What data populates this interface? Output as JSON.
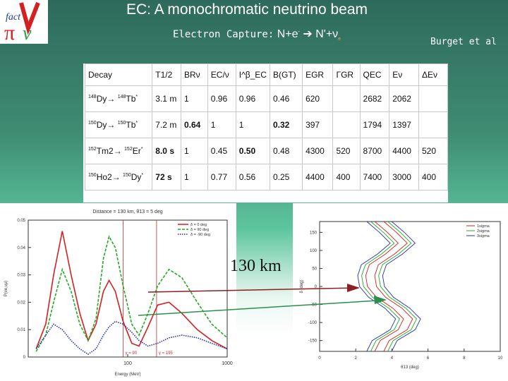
{
  "slide": {
    "title": "EC: A monochromatic neutrino beam",
    "subtitle_label": "Electron Capture:",
    "reaction_lhs": "N+e",
    "reaction_minus": "-",
    "reaction_arrow": "➔",
    "reaction_rhs": "N'+ν",
    "reaction_sub": "e",
    "credit": "Burget et al",
    "distance_label": "130 km"
  },
  "table": {
    "headers": [
      "Decay",
      "T1/2",
      "BRν",
      "EC/ν",
      "I^β_EC",
      "B(GT)",
      "EGR",
      "ΓGR",
      "QEC",
      "Eν",
      "ΔEν"
    ],
    "rows": [
      {
        "decay_a": "148",
        "el_a": "Dy",
        "decay_b": "148",
        "el_b": "Tb",
        "star": "*",
        "t": "3.1 m",
        "br": "1",
        "ec": "0.96",
        "ib": "0.96",
        "bgt": "0.46",
        "egr": "620",
        "ggr": "",
        "q": "2682",
        "e": "2062",
        "de": ""
      },
      {
        "decay_a": "150",
        "el_a": "Dy",
        "decay_b": "150",
        "el_b": "Tb",
        "star": "*",
        "t": "7.2 m",
        "br": "0.64",
        "ec": "1",
        "ib": "1",
        "bgt": "0.32",
        "egr": "397",
        "ggr": "",
        "q": "1794",
        "e": "1397",
        "de": ""
      },
      {
        "decay_a": "152",
        "el_a": "Tm2",
        "decay_b": "152",
        "el_b": "Er",
        "star": "*",
        "t": "8.0 s",
        "br": "1",
        "ec": "0.45",
        "ib": "0.50",
        "bgt": "0.48",
        "egr": "4300",
        "ggr": "520",
        "q": "8700",
        "e": "4400",
        "de": "520"
      },
      {
        "decay_a": "150",
        "el_a": "Ho2",
        "decay_b": "150",
        "el_b": "Dy",
        "star": "*",
        "t": "72 s",
        "br": "1",
        "ec": "0.77",
        "ib": "0.56",
        "bgt": "0.25",
        "egr": "4400",
        "ggr": "400",
        "q": "7400",
        "e": "3000",
        "de": "400"
      }
    ]
  },
  "chart_data": [
    {
      "type": "line",
      "title": "Distance = 130 km, θ13 = 5 deg",
      "xlabel": "Energy (MeV)",
      "ylabel": "P(νe,νμ)",
      "xscale": "log",
      "xlim": [
        10,
        1000
      ],
      "ylim": [
        0,
        0.05
      ],
      "yticks": [
        0,
        0.01,
        0.02,
        0.03,
        0.04,
        0.05
      ],
      "xticks": [
        100,
        1000
      ],
      "legend": "top-right",
      "vlines": [
        {
          "x": 90,
          "label": "γ = 90"
        },
        {
          "x": 195,
          "label": "γ = 195"
        }
      ],
      "series": [
        {
          "name": "δ = 0 deg",
          "color": "#d42020",
          "x": [
            12,
            15,
            18,
            22,
            27,
            33,
            40,
            48,
            57,
            65,
            75,
            90,
            110,
            130,
            160,
            200,
            260,
            350,
            500,
            700,
            1000
          ],
          "y": [
            0.003,
            0.012,
            0.03,
            0.046,
            0.03,
            0.016,
            0.006,
            0.012,
            0.024,
            0.028,
            0.024,
            0.013,
            0.005,
            0.004,
            0.011,
            0.019,
            0.02,
            0.016,
            0.01,
            0.006,
            0.003
          ]
        },
        {
          "name": "δ = 90 deg",
          "color": "#22aa22",
          "x": [
            12,
            15,
            18,
            22,
            27,
            33,
            40,
            48,
            57,
            65,
            75,
            90,
            110,
            130,
            160,
            200,
            260,
            350,
            500,
            700,
            1000
          ],
          "y": [
            0.002,
            0.008,
            0.02,
            0.032,
            0.024,
            0.012,
            0.006,
            0.014,
            0.036,
            0.044,
            0.04,
            0.026,
            0.012,
            0.008,
            0.016,
            0.026,
            0.032,
            0.029,
            0.02,
            0.012,
            0.007
          ]
        },
        {
          "name": "δ = -90 deg",
          "color": "#2233aa",
          "x": [
            12,
            15,
            18,
            22,
            27,
            33,
            40,
            48,
            57,
            65,
            75,
            90,
            110,
            130,
            160,
            200,
            260,
            350,
            500,
            700,
            1000
          ],
          "y": [
            0.003,
            0.008,
            0.012,
            0.01,
            0.006,
            0.003,
            0.001,
            0.003,
            0.008,
            0.011,
            0.013,
            0.012,
            0.009,
            0.006,
            0.004,
            0.005,
            0.007,
            0.008,
            0.007,
            0.005,
            0.003
          ]
        }
      ]
    },
    {
      "type": "line",
      "xlabel": "θ13 (deg)",
      "ylabel": "δ (deg)",
      "xlim": [
        0,
        10
      ],
      "ylim": [
        -180,
        180
      ],
      "yticks": [
        -150,
        -100,
        -50,
        0,
        50,
        100,
        150
      ],
      "xticks": [
        0,
        2,
        4,
        6,
        8,
        10
      ],
      "legend": "top-right",
      "series": [
        {
          "name": "1sigma",
          "color": "#d42020"
        },
        {
          "name": "2sigma",
          "color": "#22aa22"
        },
        {
          "name": "3sigma",
          "color": "#2233aa"
        }
      ]
    }
  ]
}
